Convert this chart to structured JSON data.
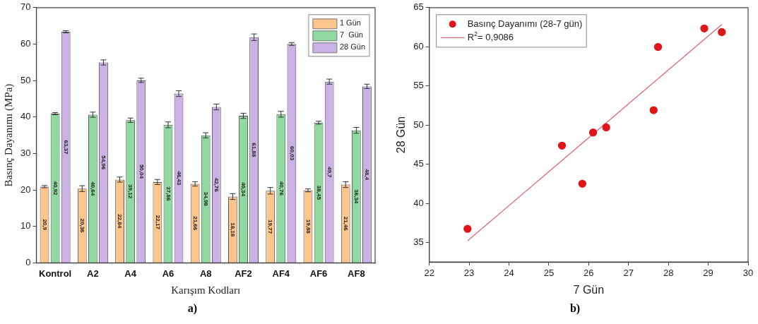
{
  "chart_data": [
    {
      "type": "bar",
      "ylabel": "Basınç Dayanımı (MPa)",
      "xlabel": "Karışım Kodları",
      "annotations": [
        "a)"
      ],
      "categories": [
        "Kontrol",
        "A2",
        "A4",
        "A6",
        "A8",
        "AF2",
        "AF4",
        "AF6",
        "AF8"
      ],
      "series": [
        {
          "name": "1 Gün",
          "color": "#fdc68c",
          "values": [
            20.9,
            20.36,
            22.84,
            22.17,
            21.66,
            18.18,
            19.77,
            19.88,
            21.46
          ],
          "value_labels": [
            "20,9",
            "20,36",
            "22,84",
            "22,17",
            "21,66",
            "18,18",
            "19,77",
            "19,88",
            "21,46"
          ],
          "errors": [
            0.3,
            0.8,
            0.7,
            0.7,
            0.6,
            0.8,
            0.9,
            0.4,
            0.8
          ]
        },
        {
          "name": "7  Gün",
          "color": "#90d9a0",
          "values": [
            40.92,
            40.64,
            39.12,
            37.86,
            34.98,
            40.34,
            40.76,
            38.45,
            36.34
          ],
          "value_labels": [
            "40,92",
            "40,64",
            "39,12",
            "37,86",
            "34,98",
            "40,34",
            "40,76",
            "38,45",
            "36,34"
          ],
          "errors": [
            0.3,
            0.7,
            0.6,
            0.8,
            0.7,
            0.7,
            0.8,
            0.4,
            0.8
          ]
        },
        {
          "name": "28 Gün",
          "color": "#cbb2e6",
          "values": [
            63.37,
            54.96,
            50.04,
            46.43,
            42.76,
            61.88,
            60.03,
            49.7,
            48.4
          ],
          "value_labels": [
            "63,37",
            "54,96",
            "50,04",
            "46,43",
            "42,76",
            "61,88",
            "60,03",
            "49,7",
            "48,4"
          ],
          "errors": [
            0.3,
            0.7,
            0.6,
            0.8,
            0.8,
            0.9,
            0.4,
            0.7,
            0.6
          ]
        }
      ],
      "ylim": [
        0,
        70
      ],
      "yticks": [
        0,
        10,
        20,
        30,
        40,
        50,
        60,
        70
      ],
      "grid": false,
      "legend": "top right"
    },
    {
      "type": "scatter",
      "xlabel": "7 Gün",
      "ylabel": "28 Gün",
      "annotations": [
        "b)"
      ],
      "series": [
        {
          "name": "Basınç Dayanımı (28-7 gün)",
          "color": "#e01515",
          "marker": "circle",
          "x": [
            22.96,
            25.33,
            25.84,
            26.11,
            26.44,
            27.63,
            27.74,
            28.9,
            29.34
          ],
          "values": [
            36.74,
            47.37,
            42.5,
            49.05,
            49.7,
            51.9,
            59.97,
            62.34,
            61.87
          ]
        },
        {
          "name": "R$^{2}$= 0,9086",
          "type": "line",
          "color": "#e06a78",
          "marker": "none",
          "x": [
            22.96,
            29.34
          ],
          "values": [
            35.2,
            62.85
          ]
        }
      ],
      "xlim": [
        22,
        30
      ],
      "xticks": [
        22,
        23,
        24,
        25,
        26,
        27,
        28,
        29,
        30
      ],
      "ylim": [
        32.5,
        65
      ],
      "yticks": [
        35,
        40,
        45,
        50,
        55,
        60,
        65
      ],
      "grid": false,
      "legend": "top left"
    }
  ]
}
